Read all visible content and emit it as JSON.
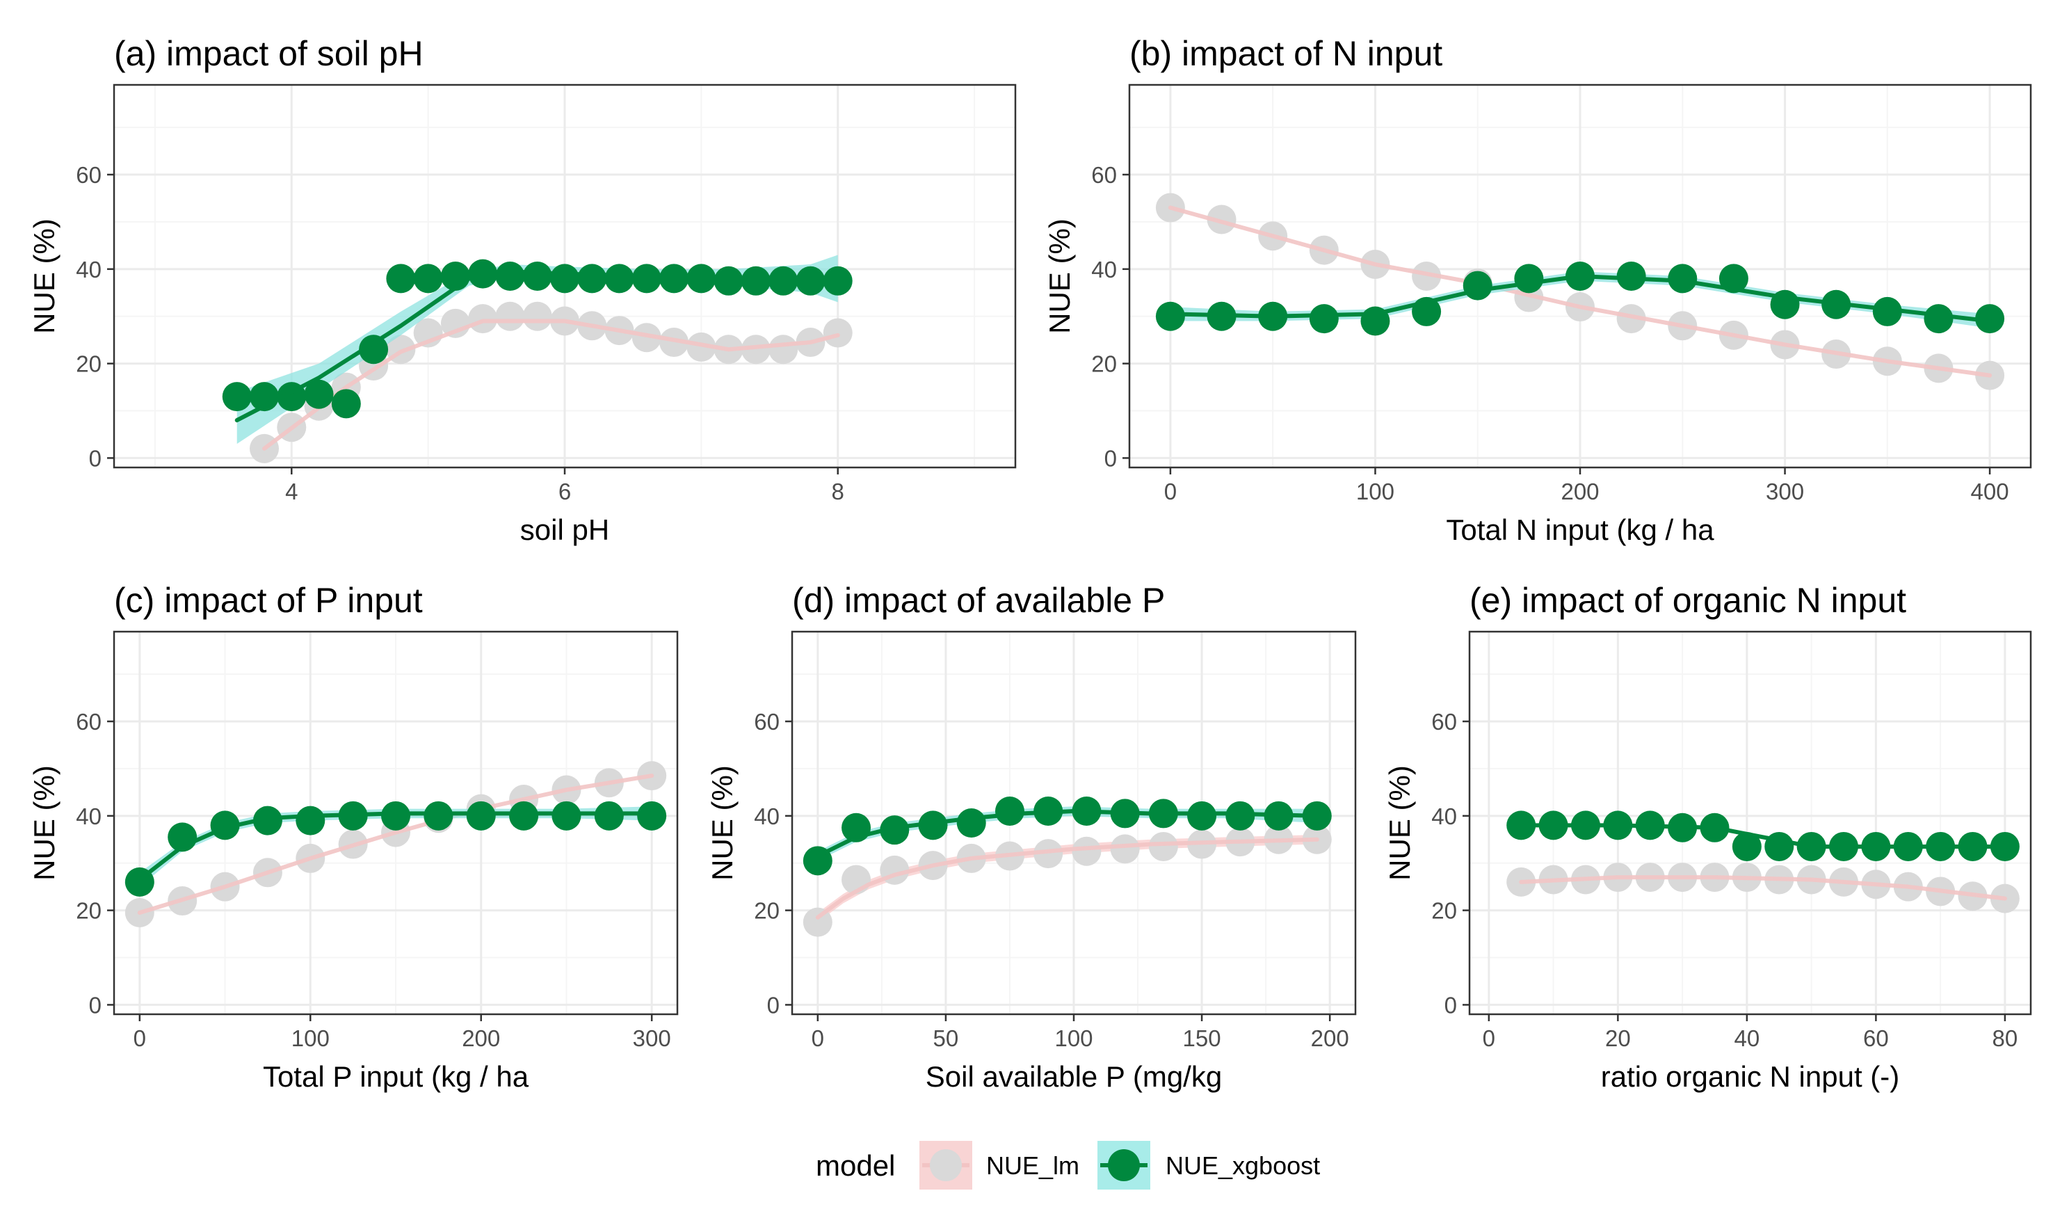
{
  "colors": {
    "lm_point": "#d9d9d9",
    "lm_line": "#f2c4c4",
    "lm_ribbon": "#f8cbcb",
    "xgb_point": "#00883e",
    "xgb_line": "#00883e",
    "xgb_ribbon": "#8fe3e0",
    "grid_major": "#ebebeb",
    "grid_minor": "#f5f5f5",
    "panel_border": "#333333"
  },
  "legend": {
    "title": "model",
    "items": [
      {
        "label": "NUE_lm"
      },
      {
        "label": "NUE_xgboost"
      }
    ]
  },
  "chart_data": [
    {
      "type": "scatter",
      "title": "(a) impact of soil pH",
      "xlabel": "soil pH",
      "ylabel": "NUE (%)",
      "xlim": [
        2.7,
        9.3
      ],
      "ylim": [
        -2,
        79
      ],
      "xticks": [
        4,
        6,
        8
      ],
      "yticks": [
        0,
        20,
        40,
        60
      ],
      "grid": true,
      "series": [
        {
          "name": "NUE_lm",
          "x": [
            3.8,
            4.0,
            4.2,
            4.4,
            4.6,
            4.8,
            5.0,
            5.2,
            5.4,
            5.6,
            5.8,
            6.0,
            6.2,
            6.4,
            6.6,
            6.8,
            7.0,
            7.2,
            7.4,
            7.6,
            7.8,
            8.0
          ],
          "y": [
            2,
            6.5,
            11,
            15,
            19.5,
            23,
            26.5,
            28.5,
            29.5,
            30,
            30,
            29,
            28,
            27,
            25.5,
            24.5,
            23.5,
            23,
            23,
            23,
            24.5,
            26.5
          ],
          "smooth_x": [
            3.8,
            4.4,
            4.8,
            5.4,
            6.0,
            6.6,
            7.2,
            7.8,
            8.0
          ],
          "smooth_y": [
            2,
            15,
            22.5,
            29,
            29,
            26,
            23,
            24.5,
            26
          ]
        },
        {
          "name": "NUE_xgboost",
          "x": [
            3.6,
            3.8,
            4.0,
            4.2,
            4.4,
            4.6,
            4.8,
            5.0,
            5.2,
            5.4,
            5.6,
            5.8,
            6.0,
            6.2,
            6.4,
            6.6,
            6.8,
            7.0,
            7.2,
            7.4,
            7.6,
            7.8,
            8.0
          ],
          "y": [
            13,
            13,
            13,
            13.5,
            11.5,
            23,
            38,
            38,
            38.5,
            39,
            38.5,
            38.5,
            38,
            38,
            38,
            38,
            38,
            38,
            37.5,
            37.5,
            37.5,
            37.5,
            37.5
          ],
          "smooth_x": [
            3.6,
            4.2,
            4.8,
            5.3,
            5.6,
            6.0,
            6.6,
            7.2,
            7.8,
            8.0
          ],
          "smooth_y": [
            8,
            17,
            28,
            38,
            39.5,
            39,
            38.5,
            38,
            37.5,
            37.5
          ],
          "band_lo": [
            3,
            14.5,
            26,
            36.5,
            38,
            37.5,
            37,
            36.5,
            35,
            33
          ],
          "band_hi": [
            14,
            20,
            31,
            39.5,
            41,
            40.5,
            40,
            40,
            41,
            43
          ]
        }
      ]
    },
    {
      "type": "scatter",
      "title": "(b) impact of N input",
      "xlabel": "Total N input (kg / ha",
      "ylabel": "NUE (%)",
      "xlim": [
        -20,
        420
      ],
      "ylim": [
        -2,
        79
      ],
      "xticks": [
        0,
        100,
        200,
        300,
        400
      ],
      "yticks": [
        0,
        20,
        40,
        60
      ],
      "grid": true,
      "series": [
        {
          "name": "NUE_lm",
          "x": [
            0,
            25,
            50,
            75,
            100,
            125,
            150,
            175,
            200,
            225,
            250,
            275,
            300,
            325,
            350,
            375,
            400
          ],
          "y": [
            53,
            50.5,
            47,
            44,
            41,
            38.5,
            37,
            34,
            32,
            29.5,
            28,
            26,
            24,
            22,
            20.5,
            19,
            17.5
          ],
          "smooth_x": [
            0,
            50,
            100,
            150,
            200,
            250,
            300,
            350,
            400
          ],
          "smooth_y": [
            53,
            47,
            41,
            37,
            32,
            28,
            24,
            20.5,
            17.5
          ]
        },
        {
          "name": "NUE_xgboost",
          "x": [
            0,
            25,
            50,
            75,
            100,
            125,
            150,
            175,
            200,
            225,
            250,
            275,
            300,
            325,
            350,
            375,
            400
          ],
          "y": [
            30,
            30,
            30,
            29.5,
            29,
            31,
            36.5,
            38,
            38.5,
            38.5,
            38,
            38,
            32.5,
            32.5,
            31,
            29.5,
            29.5
          ],
          "smooth_x": [
            0,
            50,
            100,
            150,
            200,
            250,
            300,
            350,
            400
          ],
          "smooth_y": [
            30.5,
            30,
            30.5,
            35.5,
            38.5,
            37.5,
            34,
            31.5,
            29
          ],
          "band_lo": [
            29,
            29,
            29.5,
            34.5,
            37.5,
            36.5,
            33,
            30.5,
            27.5
          ],
          "band_hi": [
            32,
            31,
            31.5,
            36.5,
            39.5,
            38.5,
            35,
            32.5,
            30.5
          ]
        }
      ]
    },
    {
      "type": "scatter",
      "title": "(c) impact of P input",
      "xlabel": "Total P input (kg / ha",
      "ylabel": "NUE (%)",
      "xlim": [
        -15,
        315
      ],
      "ylim": [
        -2,
        79
      ],
      "xticks": [
        0,
        100,
        200,
        300
      ],
      "yticks": [
        0,
        20,
        40,
        60
      ],
      "grid": true,
      "series": [
        {
          "name": "NUE_lm",
          "x": [
            0,
            25,
            50,
            75,
            100,
            125,
            150,
            175,
            200,
            225,
            250,
            275,
            300
          ],
          "y": [
            19.5,
            22,
            25,
            28,
            31,
            34,
            36.5,
            39.5,
            41.5,
            43.5,
            45.5,
            47,
            48.5
          ],
          "smooth_x": [
            0,
            50,
            100,
            150,
            200,
            250,
            300
          ],
          "smooth_y": [
            19.5,
            25,
            31,
            36.5,
            41.5,
            45.5,
            48.5
          ]
        },
        {
          "name": "NUE_xgboost",
          "x": [
            0,
            25,
            50,
            75,
            100,
            125,
            150,
            175,
            200,
            225,
            250,
            275,
            300
          ],
          "y": [
            26,
            35.5,
            38,
            39,
            39,
            40,
            40,
            40,
            40,
            40,
            40,
            40,
            40
          ],
          "smooth_x": [
            0,
            25,
            50,
            75,
            100,
            150,
            200,
            250,
            300
          ],
          "smooth_y": [
            26.5,
            33.5,
            37.5,
            39.5,
            40,
            40.5,
            40.5,
            40.5,
            40.5
          ],
          "band_lo": [
            25,
            32.5,
            36.5,
            38.5,
            39,
            39.5,
            39.5,
            39.5,
            39
          ],
          "band_hi": [
            28,
            34.5,
            38.5,
            40.5,
            41,
            41.5,
            41.5,
            41.5,
            42
          ]
        }
      ]
    },
    {
      "type": "scatter",
      "title": "(d) impact of available P",
      "xlabel": "Soil available P (mg/kg",
      "ylabel": "NUE (%)",
      "xlim": [
        -10,
        210
      ],
      "ylim": [
        -2,
        79
      ],
      "xticks": [
        0,
        50,
        100,
        150,
        200
      ],
      "yticks": [
        0,
        20,
        40,
        60
      ],
      "grid": true,
      "series": [
        {
          "name": "NUE_lm",
          "x": [
            0,
            15,
            30,
            45,
            60,
            75,
            90,
            105,
            120,
            135,
            150,
            165,
            180,
            195
          ],
          "y": [
            17.5,
            26.5,
            28.5,
            29.5,
            31,
            31.5,
            32,
            32.5,
            33,
            33.5,
            34,
            34.5,
            35,
            35
          ],
          "smooth_x": [
            0,
            10,
            20,
            30,
            45,
            60,
            80,
            100,
            130,
            160,
            195
          ],
          "smooth_y": [
            18.5,
            22.5,
            25.5,
            27.5,
            29.5,
            31,
            32,
            33,
            34,
            34.5,
            35
          ],
          "band_lo": [
            17.5,
            21.5,
            24.5,
            26.5,
            28.5,
            30,
            31,
            32,
            33,
            33.5,
            34
          ],
          "band_hi": [
            19.5,
            23.5,
            26.5,
            28.5,
            30.5,
            32,
            33,
            34,
            35,
            35.5,
            36
          ]
        },
        {
          "name": "NUE_xgboost",
          "x": [
            0,
            15,
            30,
            45,
            60,
            75,
            90,
            105,
            120,
            135,
            150,
            165,
            180,
            195
          ],
          "y": [
            30.5,
            37.5,
            37,
            38,
            38.5,
            41,
            41,
            41,
            40.5,
            40.5,
            40,
            40,
            40,
            40
          ],
          "smooth_x": [
            0,
            15,
            30,
            45,
            60,
            80,
            100,
            130,
            160,
            195
          ],
          "smooth_y": [
            31.5,
            35.5,
            37.5,
            38.5,
            39.5,
            40.5,
            41,
            40.5,
            40.5,
            40
          ],
          "band_lo": [
            30.5,
            34.5,
            36.5,
            37.5,
            38.5,
            39.5,
            40,
            39.5,
            39.5,
            38.5
          ],
          "band_hi": [
            32.5,
            36.5,
            38.5,
            39.5,
            40.5,
            41.5,
            42,
            41.5,
            41.5,
            41.5
          ]
        }
      ]
    },
    {
      "type": "scatter",
      "title": "(e) impact of organic N input",
      "xlabel": "ratio organic N input (-)",
      "ylabel": "NUE (%)",
      "xlim": [
        -3,
        84
      ],
      "ylim": [
        -2,
        79
      ],
      "xticks": [
        0,
        20,
        40,
        60,
        80
      ],
      "yticks": [
        0,
        20,
        40,
        60
      ],
      "grid": true,
      "series": [
        {
          "name": "NUE_lm",
          "x": [
            5,
            10,
            15,
            20,
            25,
            30,
            35,
            40,
            45,
            50,
            55,
            60,
            65,
            70,
            75,
            80
          ],
          "y": [
            26,
            26.5,
            26.5,
            27,
            27,
            27,
            27,
            27,
            26.5,
            26.5,
            26,
            25.5,
            25,
            24,
            23,
            22.5
          ],
          "smooth_x": [
            5,
            20,
            35,
            50,
            65,
            80
          ],
          "smooth_y": [
            26,
            27,
            27,
            26.5,
            25,
            22.5
          ]
        },
        {
          "name": "NUE_xgboost",
          "x": [
            5,
            10,
            15,
            20,
            25,
            30,
            35,
            40,
            45,
            50,
            55,
            60,
            65,
            70,
            75,
            80
          ],
          "y": [
            38,
            38,
            38,
            38,
            38,
            37.5,
            37.5,
            33.5,
            33.5,
            33.5,
            33.5,
            33.5,
            33.5,
            33.5,
            33.5,
            33.5
          ],
          "smooth_x": [
            5,
            20,
            35,
            50,
            65,
            80
          ],
          "smooth_y": [
            38,
            38,
            37.5,
            33.5,
            33.5,
            33.5
          ]
        }
      ]
    }
  ]
}
